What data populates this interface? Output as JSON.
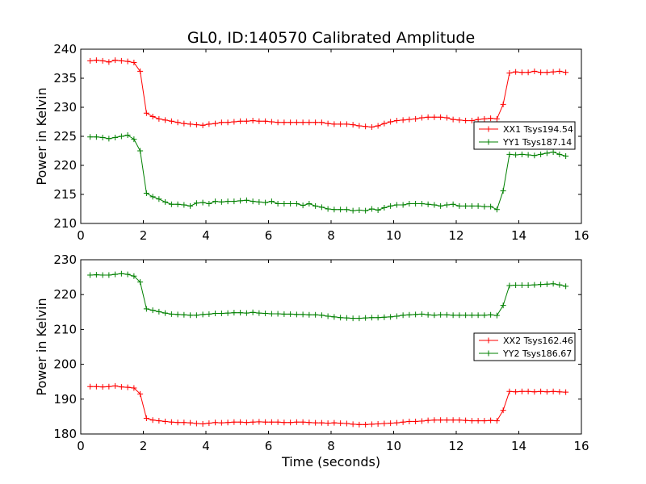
{
  "title": "GL0, ID:140570 Calibrated Amplitude",
  "xlabel": "Time (seconds)",
  "chart_data": [
    {
      "type": "line",
      "ylabel": "Power in Kelvin",
      "xlim": [
        0,
        16
      ],
      "ylim": [
        210,
        240
      ],
      "xticks": [
        "0",
        "2",
        "4",
        "6",
        "8",
        "10",
        "12",
        "14",
        "16"
      ],
      "yticks": [
        "210",
        "215",
        "220",
        "225",
        "230",
        "235",
        "240"
      ],
      "grid": false,
      "legend_position": "right",
      "x": [
        0.3,
        0.5,
        0.7,
        0.9,
        1.1,
        1.3,
        1.5,
        1.7,
        1.9,
        2.1,
        2.3,
        2.5,
        2.7,
        2.9,
        3.1,
        3.3,
        3.5,
        3.7,
        3.9,
        4.1,
        4.3,
        4.5,
        4.7,
        4.9,
        5.1,
        5.3,
        5.5,
        5.7,
        5.9,
        6.1,
        6.3,
        6.5,
        6.7,
        6.9,
        7.1,
        7.3,
        7.5,
        7.7,
        7.9,
        8.1,
        8.3,
        8.5,
        8.7,
        8.9,
        9.1,
        9.3,
        9.5,
        9.7,
        9.9,
        10.1,
        10.3,
        10.5,
        10.7,
        10.9,
        11.1,
        11.3,
        11.5,
        11.7,
        11.9,
        12.1,
        12.3,
        12.5,
        12.7,
        12.9,
        13.1,
        13.3,
        13.5,
        13.7,
        13.9,
        14.1,
        14.3,
        14.5,
        14.7,
        14.9,
        15.1,
        15.3,
        15.5
      ],
      "series": [
        {
          "name": "XX1 Tsys194.54",
          "color": "#ff0000",
          "values": [
            238.0,
            238.1,
            238.0,
            237.8,
            238.1,
            238.0,
            237.9,
            237.7,
            236.2,
            229.0,
            228.4,
            228.0,
            227.8,
            227.6,
            227.4,
            227.2,
            227.1,
            227.0,
            226.9,
            227.1,
            227.2,
            227.4,
            227.4,
            227.5,
            227.6,
            227.6,
            227.7,
            227.6,
            227.6,
            227.5,
            227.4,
            227.4,
            227.4,
            227.4,
            227.4,
            227.4,
            227.4,
            227.4,
            227.2,
            227.1,
            227.1,
            227.1,
            227.0,
            226.8,
            226.7,
            226.6,
            226.8,
            227.2,
            227.5,
            227.7,
            227.8,
            227.9,
            228.0,
            228.2,
            228.3,
            228.3,
            228.3,
            228.2,
            227.9,
            227.8,
            227.7,
            227.7,
            227.9,
            228.0,
            228.1,
            228.0,
            230.5,
            235.9,
            236.1,
            236.0,
            236.0,
            236.2,
            236.0,
            236.0,
            236.1,
            236.2,
            236.0
          ]
        },
        {
          "name": "YY1 Tsys187.14",
          "color": "#008000",
          "values": [
            224.9,
            224.9,
            224.8,
            224.6,
            224.8,
            225.0,
            225.2,
            224.5,
            222.5,
            215.2,
            214.6,
            214.2,
            213.7,
            213.3,
            213.3,
            213.2,
            213.0,
            213.5,
            213.6,
            213.4,
            213.8,
            213.7,
            213.8,
            213.8,
            213.9,
            214.0,
            213.8,
            213.7,
            213.6,
            213.8,
            213.4,
            213.4,
            213.4,
            213.4,
            213.1,
            213.4,
            213.0,
            212.8,
            212.5,
            212.4,
            212.4,
            212.4,
            212.2,
            212.3,
            212.2,
            212.5,
            212.3,
            212.7,
            213.0,
            213.2,
            213.2,
            213.4,
            213.4,
            213.4,
            213.3,
            213.2,
            213.0,
            213.2,
            213.3,
            213.0,
            213.0,
            213.0,
            213.0,
            212.9,
            212.9,
            212.4,
            215.6,
            221.9,
            221.8,
            221.9,
            221.8,
            221.7,
            221.9,
            222.1,
            222.3,
            221.9,
            221.6
          ]
        }
      ]
    },
    {
      "type": "line",
      "ylabel": "Power in Kelvin",
      "xlabel": "Time (seconds)",
      "xlim": [
        0,
        16
      ],
      "ylim": [
        180,
        230
      ],
      "xticks": [
        "0",
        "2",
        "4",
        "6",
        "8",
        "10",
        "12",
        "14",
        "16"
      ],
      "yticks": [
        "180",
        "190",
        "200",
        "210",
        "220",
        "230"
      ],
      "grid": false,
      "legend_position": "right",
      "x": [
        0.3,
        0.5,
        0.7,
        0.9,
        1.1,
        1.3,
        1.5,
        1.7,
        1.9,
        2.1,
        2.3,
        2.5,
        2.7,
        2.9,
        3.1,
        3.3,
        3.5,
        3.7,
        3.9,
        4.1,
        4.3,
        4.5,
        4.7,
        4.9,
        5.1,
        5.3,
        5.5,
        5.7,
        5.9,
        6.1,
        6.3,
        6.5,
        6.7,
        6.9,
        7.1,
        7.3,
        7.5,
        7.7,
        7.9,
        8.1,
        8.3,
        8.5,
        8.7,
        8.9,
        9.1,
        9.3,
        9.5,
        9.7,
        9.9,
        10.1,
        10.3,
        10.5,
        10.7,
        10.9,
        11.1,
        11.3,
        11.5,
        11.7,
        11.9,
        12.1,
        12.3,
        12.5,
        12.7,
        12.9,
        13.1,
        13.3,
        13.5,
        13.7,
        13.9,
        14.1,
        14.3,
        14.5,
        14.7,
        14.9,
        15.1,
        15.3,
        15.5
      ],
      "series": [
        {
          "name": "XX2 Tsys162.46",
          "color": "#ff0000",
          "values": [
            193.6,
            193.6,
            193.5,
            193.6,
            193.8,
            193.5,
            193.4,
            193.2,
            191.5,
            184.5,
            184.0,
            183.8,
            183.6,
            183.4,
            183.3,
            183.3,
            183.2,
            183.0,
            182.9,
            183.1,
            183.3,
            183.2,
            183.3,
            183.4,
            183.4,
            183.3,
            183.4,
            183.5,
            183.4,
            183.4,
            183.4,
            183.3,
            183.3,
            183.4,
            183.4,
            183.3,
            183.2,
            183.2,
            183.1,
            183.2,
            183.1,
            183.0,
            182.8,
            182.7,
            182.7,
            182.8,
            182.9,
            183.0,
            183.1,
            183.2,
            183.4,
            183.6,
            183.6,
            183.7,
            183.9,
            184.0,
            184.0,
            184.0,
            184.0,
            184.0,
            183.9,
            183.8,
            183.8,
            183.8,
            183.9,
            183.8,
            186.8,
            192.2,
            192.1,
            192.2,
            192.2,
            192.1,
            192.2,
            192.1,
            192.2,
            192.1,
            192.0
          ]
        },
        {
          "name": "YY2 Tsys186.67",
          "color": "#008000",
          "values": [
            225.6,
            225.7,
            225.6,
            225.6,
            225.8,
            226.0,
            225.8,
            225.3,
            223.6,
            215.9,
            215.5,
            215.1,
            214.7,
            214.4,
            214.3,
            214.2,
            214.1,
            214.1,
            214.3,
            214.4,
            214.6,
            214.6,
            214.7,
            214.8,
            214.8,
            214.7,
            214.9,
            214.7,
            214.6,
            214.5,
            214.5,
            214.4,
            214.4,
            214.3,
            214.3,
            214.2,
            214.2,
            214.1,
            213.8,
            213.6,
            213.4,
            213.3,
            213.2,
            213.2,
            213.3,
            213.4,
            213.4,
            213.5,
            213.6,
            213.8,
            214.1,
            214.2,
            214.3,
            214.4,
            214.2,
            214.1,
            214.2,
            214.2,
            214.1,
            214.1,
            214.1,
            214.1,
            214.1,
            214.1,
            214.2,
            214.0,
            216.9,
            222.6,
            222.7,
            222.7,
            222.7,
            222.8,
            222.9,
            223.0,
            223.1,
            222.8,
            222.4
          ]
        }
      ]
    }
  ]
}
